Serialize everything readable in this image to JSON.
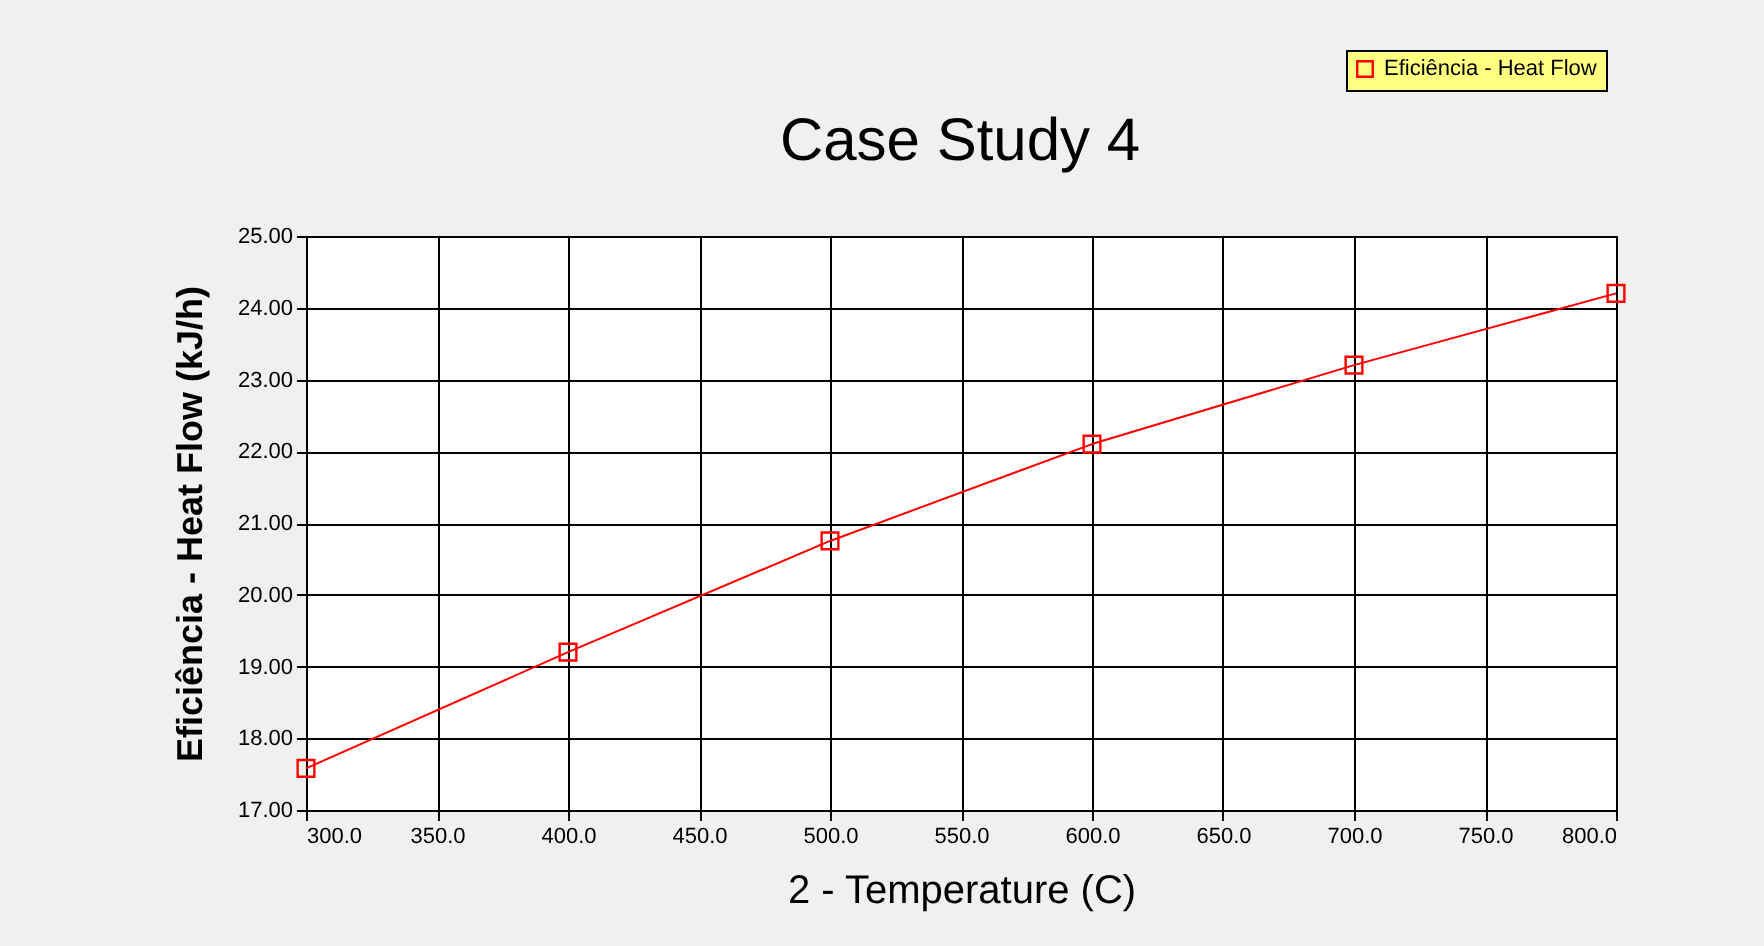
{
  "chart_data": {
    "type": "line",
    "title": "Case Study 4",
    "xlabel": "2 - Temperature (C)",
    "ylabel": "Eficiência - Heat Flow (kJ/h)",
    "x": [
      300,
      400,
      500,
      600,
      700,
      800
    ],
    "series": [
      {
        "name": "Eficiência - Heat Flow",
        "color": "#ff0000",
        "values": [
          17.58,
          19.2,
          20.75,
          22.1,
          23.2,
          24.2
        ]
      }
    ],
    "xlim": [
      300,
      800
    ],
    "xticks": [
      {
        "value": 300,
        "label": "300.0"
      },
      {
        "value": 350,
        "label": "350.0"
      },
      {
        "value": 400,
        "label": "400.0"
      },
      {
        "value": 450,
        "label": "450.0"
      },
      {
        "value": 500,
        "label": "500.0"
      },
      {
        "value": 550,
        "label": "550.0"
      },
      {
        "value": 600,
        "label": "600.0"
      },
      {
        "value": 650,
        "label": "650.0"
      },
      {
        "value": 700,
        "label": "700.0"
      },
      {
        "value": 750,
        "label": "750.0"
      },
      {
        "value": 800,
        "label": "800.0"
      }
    ],
    "ylim": [
      17,
      25
    ],
    "yticks": [
      {
        "value": 17,
        "label": "17.00"
      },
      {
        "value": 18,
        "label": "18.00"
      },
      {
        "value": 19,
        "label": "19.00"
      },
      {
        "value": 20,
        "label": "20.00"
      },
      {
        "value": 21,
        "label": "21.00"
      },
      {
        "value": 22,
        "label": "22.00"
      },
      {
        "value": 23,
        "label": "23.00"
      },
      {
        "value": 24,
        "label": "24.00"
      },
      {
        "value": 25,
        "label": "25.00"
      }
    ],
    "grid": true,
    "legend": "top right",
    "marker": "square",
    "line_style": "solid"
  }
}
